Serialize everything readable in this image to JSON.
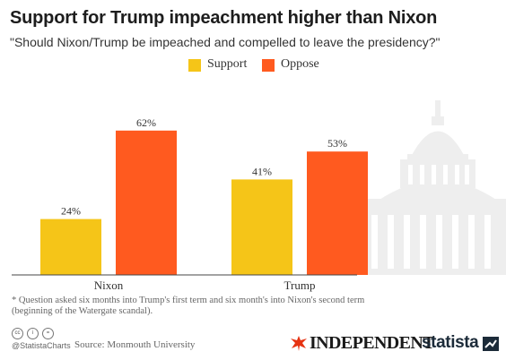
{
  "header": {
    "title": "Support for Trump impeachment higher than Nixon",
    "subtitle": "\"Should  Nixon/Trump be impeached and compelled to leave the presidency?\""
  },
  "chart_data": {
    "type": "bar",
    "title": "Support for Trump impeachment higher than Nixon",
    "subtitle": "\"Should  Nixon/Trump be impeached and compelled to leave the presidency?\"",
    "categories": [
      "Nixon",
      "Trump"
    ],
    "series": [
      {
        "name": "Support",
        "values": [
          24,
          41
        ],
        "labels": [
          "24%",
          "41%"
        ],
        "color": "#f5c518"
      },
      {
        "name": "Oppose",
        "values": [
          62,
          53
        ],
        "labels": [
          "62%",
          "53%"
        ],
        "color": "#ff5a1f"
      }
    ],
    "unit": "%",
    "ylim": [
      0,
      75
    ],
    "grid": false,
    "legend_position": "top-center"
  },
  "footer": {
    "footnote": "* Question asked six months into Trump's first term and six month's into Nixon's second term (beginning of the Watergate scandal).",
    "cc_icons": [
      "cc",
      "i",
      "="
    ],
    "handle": "@StatistaCharts",
    "source": "Source: Monmouth University",
    "independent_logo": "INDEPENDENT",
    "statista_logo": "statista"
  },
  "colors": {
    "support": "#f5c518",
    "oppose": "#ff5a1f",
    "baseline": "#444444",
    "capitol_silhouette": "#eeeeee",
    "eagle": "#e63312",
    "statista_mark": "#1c2b39"
  }
}
